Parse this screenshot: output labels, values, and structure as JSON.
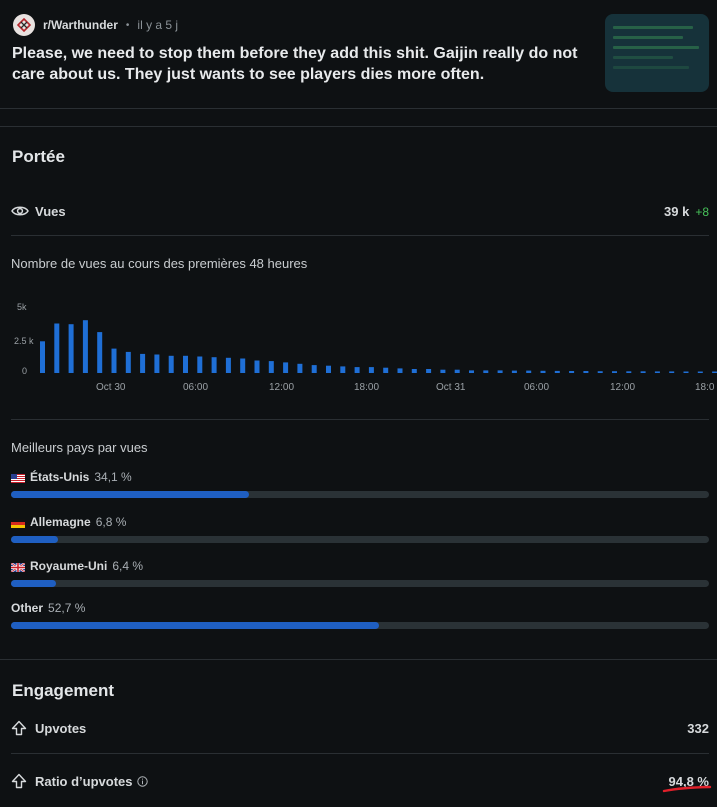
{
  "post": {
    "subreddit": "r/Warthunder",
    "separator": "•",
    "time": "il y a 5 j",
    "title": "Please, we need to stop them before they add this shit. Gaijin really do not care about us. They just wants to see players dies more often."
  },
  "reach": {
    "heading": "Portée",
    "views_label": "Vues",
    "views_value": "39 k",
    "views_delta": "+8",
    "chart_title": "Nombre de vues au cours des premières 48 heures"
  },
  "chart_data": {
    "type": "bar",
    "y_tick_labels": [
      "5k",
      "2.5 k",
      "0"
    ],
    "ylim": [
      0,
      5000
    ],
    "x_tick_labels": [
      "Oct 30",
      "06:00",
      "12:00",
      "18:00",
      "Oct 31",
      "06:00",
      "12:00",
      "18:0"
    ],
    "values": [
      2400,
      3750,
      3700,
      4000,
      3100,
      1850,
      1600,
      1450,
      1400,
      1300,
      1300,
      1250,
      1200,
      1150,
      1100,
      950,
      900,
      800,
      700,
      600,
      550,
      500,
      450,
      450,
      400,
      350,
      300,
      300,
      250,
      250,
      200,
      200,
      200,
      180,
      180,
      170,
      160,
      150,
      150,
      140,
      140,
      130,
      130,
      120,
      120,
      110,
      110,
      100
    ],
    "bar_color": "#1f6fd6"
  },
  "countries": {
    "heading": "Meilleurs pays par vues",
    "items": [
      {
        "name": "États-Unis",
        "pct": "34,1 %",
        "value": 34.1,
        "flag": "us-flag"
      },
      {
        "name": "Allemagne",
        "pct": "6,8 %",
        "value": 6.8,
        "flag": "de-flag"
      },
      {
        "name": "Royaume-Uni",
        "pct": "6,4 %",
        "value": 6.4,
        "flag": "uk-flag"
      },
      {
        "name": "Other",
        "pct": "52,7 %",
        "value": 52.7,
        "flag": ""
      }
    ]
  },
  "engagement": {
    "heading": "Engagement",
    "upvotes_label": "Upvotes",
    "upvotes_value": "332",
    "ratio_label": "Ratio d’upvotes",
    "ratio_value": "94,8 %"
  },
  "colors": {
    "background": "#0e1113",
    "bar_blue": "#1f5fc2",
    "positive_green": "#47c35a",
    "annotation_red": "#e0202a"
  }
}
